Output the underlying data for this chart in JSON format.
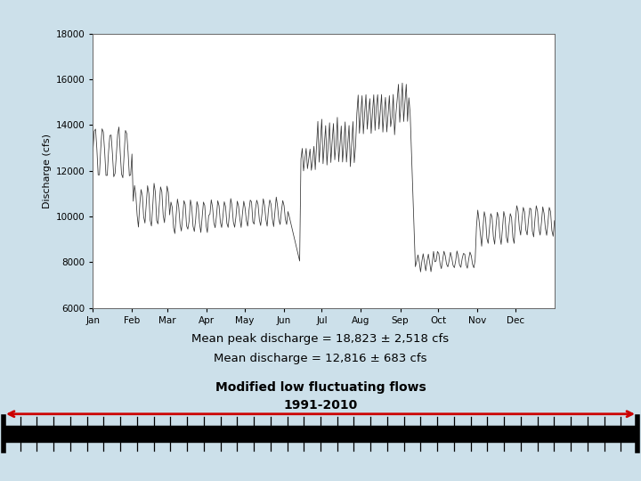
{
  "background_color": "#cce0ea",
  "plot_bg_color": "#ffffff",
  "ylabel": "Discharge (cfs)",
  "ylim": [
    6000,
    18000
  ],
  "yticks": [
    6000,
    8000,
    10000,
    12000,
    14000,
    16000,
    18000
  ],
  "months": [
    "Jan",
    "Feb",
    "Mar",
    "Apr",
    "May",
    "Jun",
    "Jul",
    "Aug",
    "Sep",
    "Oct",
    "Nov",
    "Dec"
  ],
  "line_color": "#333333",
  "annotation_line1": "Mean peak discharge = 18,823 ± 2,518 cfs",
  "annotation_line2": "Mean discharge = 12,816 ± 683 cfs",
  "annotation_line3": "Modified low fluctuating flows",
  "annotation_line4": "1991-2010",
  "arrow_color": "#cc0000",
  "timeline_color": "#000000",
  "fig_width": 7.2,
  "fig_height": 5.4,
  "dpi": 100
}
